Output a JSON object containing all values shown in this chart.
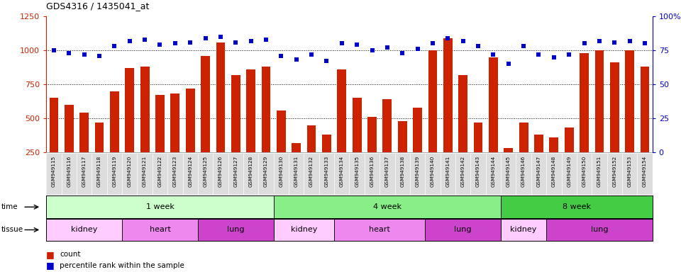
{
  "title": "GDS4316 / 1435041_at",
  "samples": [
    "GSM949115",
    "GSM949116",
    "GSM949117",
    "GSM949118",
    "GSM949119",
    "GSM949120",
    "GSM949121",
    "GSM949122",
    "GSM949123",
    "GSM949124",
    "GSM949125",
    "GSM949126",
    "GSM949127",
    "GSM949128",
    "GSM949129",
    "GSM949130",
    "GSM949131",
    "GSM949132",
    "GSM949133",
    "GSM949134",
    "GSM949135",
    "GSM949136",
    "GSM949137",
    "GSM949138",
    "GSM949139",
    "GSM949140",
    "GSM949141",
    "GSM949142",
    "GSM949143",
    "GSM949144",
    "GSM949145",
    "GSM949146",
    "GSM949147",
    "GSM949148",
    "GSM949149",
    "GSM949150",
    "GSM949151",
    "GSM949152",
    "GSM949153",
    "GSM949154"
  ],
  "counts": [
    650,
    600,
    540,
    470,
    700,
    870,
    880,
    670,
    680,
    720,
    960,
    1060,
    820,
    860,
    880,
    560,
    320,
    450,
    380,
    860,
    650,
    510,
    640,
    480,
    580,
    1000,
    1090,
    820,
    470,
    950,
    280,
    470,
    380,
    360,
    430,
    980,
    1000,
    910,
    1000,
    880
  ],
  "percentile": [
    75,
    73,
    72,
    71,
    78,
    82,
    83,
    79,
    80,
    81,
    84,
    85,
    81,
    82,
    83,
    71,
    68,
    72,
    67,
    80,
    79,
    75,
    77,
    73,
    76,
    80,
    84,
    82,
    78,
    72,
    65,
    78,
    72,
    70,
    72,
    80,
    82,
    81,
    82,
    80
  ],
  "bar_color": "#cc2200",
  "dot_color": "#0000cc",
  "ylim_left": [
    250,
    1250
  ],
  "ylim_right": [
    0,
    100
  ],
  "yticks_left": [
    250,
    500,
    750,
    1000,
    1250
  ],
  "yticks_right": [
    0,
    25,
    50,
    75,
    100
  ],
  "ytick_labels_right": [
    "0",
    "25",
    "50",
    "75",
    "100%"
  ],
  "gridlines": [
    500,
    750,
    1000
  ],
  "time_groups": [
    {
      "label": "1 week",
      "start": 0,
      "end": 15,
      "color": "#ccffcc"
    },
    {
      "label": "4 week",
      "start": 15,
      "end": 30,
      "color": "#88ee88"
    },
    {
      "label": "8 week",
      "start": 30,
      "end": 40,
      "color": "#44cc44"
    }
  ],
  "tissue_groups": [
    {
      "label": "kidney",
      "start": 0,
      "end": 5,
      "color": "#ffccff"
    },
    {
      "label": "heart",
      "start": 5,
      "end": 10,
      "color": "#ee88ee"
    },
    {
      "label": "lung",
      "start": 10,
      "end": 15,
      "color": "#cc44cc"
    },
    {
      "label": "kidney",
      "start": 15,
      "end": 19,
      "color": "#ffccff"
    },
    {
      "label": "heart",
      "start": 19,
      "end": 25,
      "color": "#ee88ee"
    },
    {
      "label": "lung",
      "start": 25,
      "end": 30,
      "color": "#cc44cc"
    },
    {
      "label": "kidney",
      "start": 30,
      "end": 33,
      "color": "#ffccff"
    },
    {
      "label": "lung",
      "start": 33,
      "end": 40,
      "color": "#cc44cc"
    }
  ],
  "bg_color": "#ffffff",
  "tick_color_left": "#cc2200",
  "tick_color_right": "#0000cc",
  "xticklabel_bg": "#dddddd"
}
